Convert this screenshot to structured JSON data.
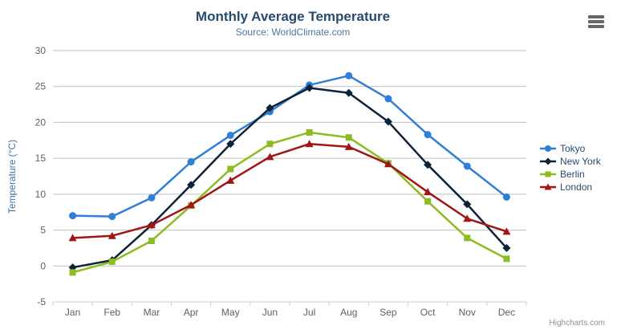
{
  "credits": {
    "label": "Highcharts.com"
  },
  "export_menu": {
    "icon": "hamburger-icon"
  },
  "chart_data": {
    "type": "line",
    "title": "Monthly Average Temperature",
    "subtitle": "Source: WorldClimate.com",
    "xlabel": "",
    "ylabel": "Temperature (°C)",
    "categories": [
      "Jan",
      "Feb",
      "Mar",
      "Apr",
      "May",
      "Jun",
      "Jul",
      "Aug",
      "Sep",
      "Oct",
      "Nov",
      "Dec"
    ],
    "ylim": [
      -5,
      30
    ],
    "yticks": [
      30,
      25,
      20,
      15,
      10,
      5,
      0,
      -5
    ],
    "grid": true,
    "legend_position": "right",
    "colors": {
      "grid_line": "#c0c0c0",
      "axis_line": "#c0d0e0",
      "axis_label": "#606060",
      "title": "#274b6d",
      "subtitle": "#4d759e",
      "y_axis_title": "#4572a7",
      "legend_text": "#274b6d",
      "credits_text": "#909090"
    },
    "series": [
      {
        "name": "Tokyo",
        "color": "#2f7ed8",
        "marker": "circle",
        "values": [
          7.0,
          6.9,
          9.5,
          14.5,
          18.2,
          21.5,
          25.2,
          26.5,
          23.3,
          18.3,
          13.9,
          9.6
        ]
      },
      {
        "name": "New York",
        "color": "#0d233a",
        "marker": "diamond",
        "values": [
          -0.2,
          0.8,
          5.7,
          11.3,
          17.0,
          22.0,
          24.8,
          24.1,
          20.1,
          14.1,
          8.6,
          2.5
        ]
      },
      {
        "name": "Berlin",
        "color": "#8bbc21",
        "marker": "square",
        "values": [
          -0.9,
          0.6,
          3.5,
          8.4,
          13.5,
          17.0,
          18.6,
          17.9,
          14.3,
          9.0,
          3.9,
          1.0
        ]
      },
      {
        "name": "London",
        "color": "#a01515",
        "marker": "triangle",
        "values": [
          3.9,
          4.2,
          5.7,
          8.5,
          11.9,
          15.2,
          17.0,
          16.6,
          14.2,
          10.3,
          6.6,
          4.8
        ]
      }
    ]
  }
}
